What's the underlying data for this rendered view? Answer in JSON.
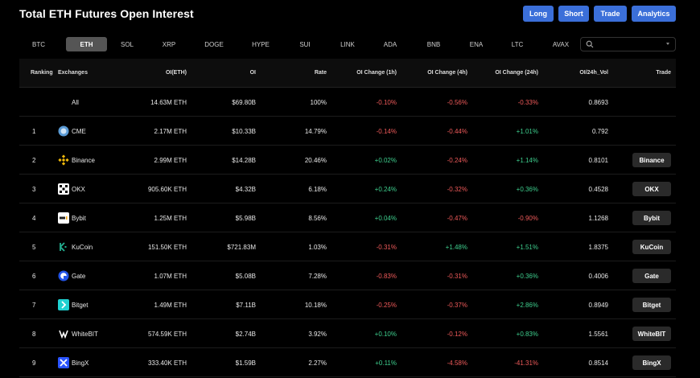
{
  "header": {
    "title": "Total ETH Futures Open Interest",
    "buttons": [
      "Long",
      "Short",
      "Trade",
      "Analytics"
    ]
  },
  "tabs": [
    "BTC",
    "ETH",
    "SOL",
    "XRP",
    "DOGE",
    "HYPE",
    "SUI",
    "LINK",
    "ADA",
    "BNB",
    "ENA",
    "LTC",
    "AVAX"
  ],
  "active_tab": "ETH",
  "search": {
    "placeholder": ""
  },
  "table": {
    "columns": [
      "Ranking",
      "Exchanges",
      "OI(ETH)",
      "OI",
      "Rate",
      "OI Change (1h)",
      "OI Change (4h)",
      "OI Change (24h)",
      "OI/24h_Vol",
      "Trade"
    ],
    "rows": [
      {
        "rank": "",
        "exchange": "All",
        "icon": "",
        "oi_eth": "14.63M ETH",
        "oi": "$69.80B",
        "rate": "100%",
        "ch1h": "-0.10%",
        "ch4h": "-0.56%",
        "ch24h": "-0.33%",
        "vol": "0.8693",
        "trade": ""
      },
      {
        "rank": "1",
        "exchange": "CME",
        "icon": "cme-icon",
        "oi_eth": "2.17M ETH",
        "oi": "$10.33B",
        "rate": "14.79%",
        "ch1h": "-0.14%",
        "ch4h": "-0.44%",
        "ch24h": "+1.01%",
        "vol": "0.792",
        "trade": ""
      },
      {
        "rank": "2",
        "exchange": "Binance",
        "icon": "binance-icon",
        "oi_eth": "2.99M ETH",
        "oi": "$14.28B",
        "rate": "20.46%",
        "ch1h": "+0.02%",
        "ch4h": "-0.24%",
        "ch24h": "+1.14%",
        "vol": "0.8101",
        "trade": "Binance"
      },
      {
        "rank": "3",
        "exchange": "OKX",
        "icon": "okx-icon",
        "oi_eth": "905.60K ETH",
        "oi": "$4.32B",
        "rate": "6.18%",
        "ch1h": "+0.24%",
        "ch4h": "-0.32%",
        "ch24h": "+0.36%",
        "vol": "0.4528",
        "trade": "OKX"
      },
      {
        "rank": "4",
        "exchange": "Bybit",
        "icon": "bybit-icon",
        "oi_eth": "1.25M ETH",
        "oi": "$5.98B",
        "rate": "8.56%",
        "ch1h": "+0.04%",
        "ch4h": "-0.47%",
        "ch24h": "-0.90%",
        "vol": "1.1268",
        "trade": "Bybit"
      },
      {
        "rank": "5",
        "exchange": "KuCoin",
        "icon": "kucoin-icon",
        "oi_eth": "151.50K ETH",
        "oi": "$721.83M",
        "rate": "1.03%",
        "ch1h": "-0.31%",
        "ch4h": "+1.48%",
        "ch24h": "+1.51%",
        "vol": "1.8375",
        "trade": "KuCoin"
      },
      {
        "rank": "6",
        "exchange": "Gate",
        "icon": "gate-icon",
        "oi_eth": "1.07M ETH",
        "oi": "$5.08B",
        "rate": "7.28%",
        "ch1h": "-0.83%",
        "ch4h": "-0.31%",
        "ch24h": "+0.36%",
        "vol": "0.4006",
        "trade": "Gate"
      },
      {
        "rank": "7",
        "exchange": "Bitget",
        "icon": "bitget-icon",
        "oi_eth": "1.49M ETH",
        "oi": "$7.11B",
        "rate": "10.18%",
        "ch1h": "-0.25%",
        "ch4h": "-0.37%",
        "ch24h": "+2.86%",
        "vol": "0.8949",
        "trade": "Bitget"
      },
      {
        "rank": "8",
        "exchange": "WhiteBIT",
        "icon": "whitebit-icon",
        "oi_eth": "574.59K ETH",
        "oi": "$2.74B",
        "rate": "3.92%",
        "ch1h": "+0.10%",
        "ch4h": "-0.12%",
        "ch24h": "+0.83%",
        "vol": "1.5561",
        "trade": "WhiteBIT"
      },
      {
        "rank": "9",
        "exchange": "BingX",
        "icon": "bingx-icon",
        "oi_eth": "333.40K ETH",
        "oi": "$1.59B",
        "rate": "2.27%",
        "ch1h": "+0.11%",
        "ch4h": "-4.58%",
        "ch24h": "-41.31%",
        "vol": "0.8514",
        "trade": "BingX"
      }
    ]
  },
  "colors": {
    "accent": "#3b6fd9",
    "positive": "#3ecf8e",
    "negative": "#ef5a5a",
    "background": "#000000"
  }
}
